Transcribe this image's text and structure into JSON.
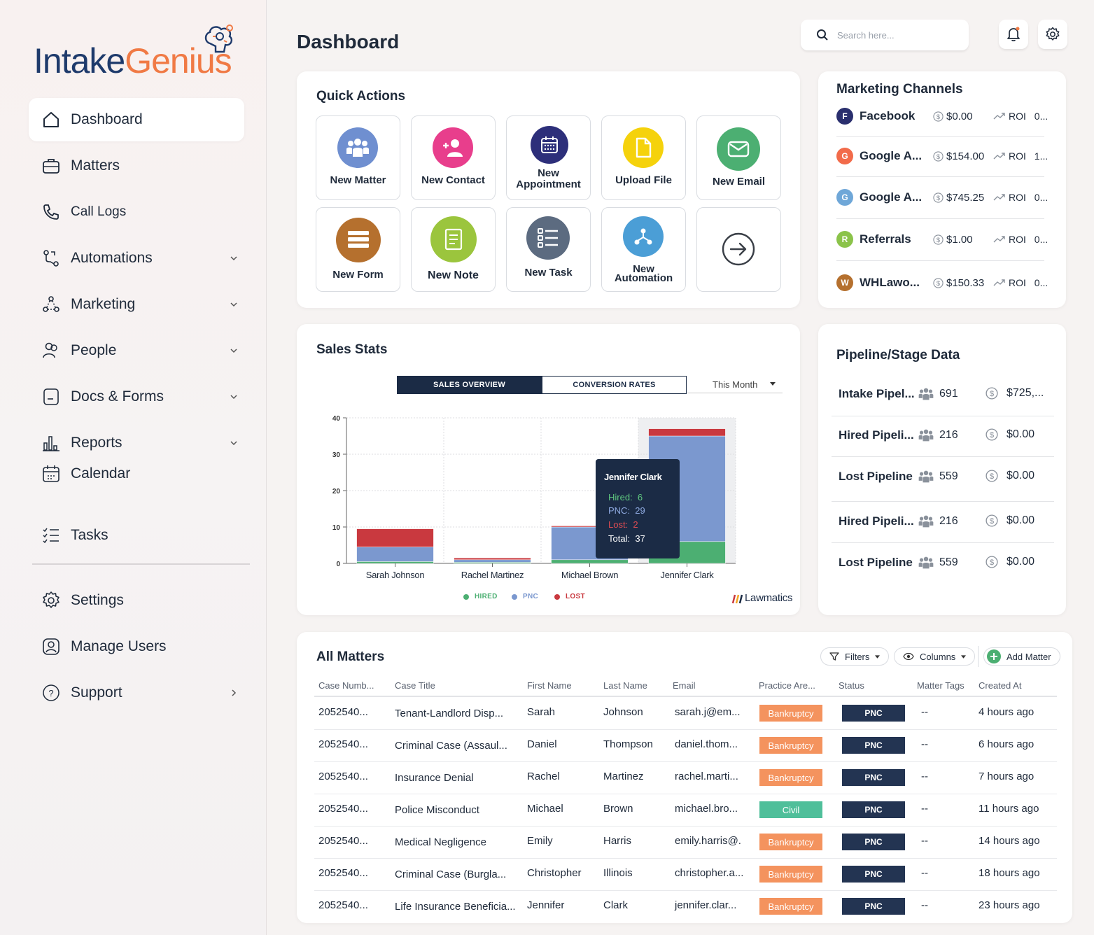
{
  "brand": {
    "part1": "Intake",
    "part2": "Genius"
  },
  "sidebar": {
    "items": [
      {
        "label": "Dashboard"
      },
      {
        "label": "Matters"
      },
      {
        "label": "Call Logs"
      },
      {
        "label": "Automations"
      },
      {
        "label": "Marketing"
      },
      {
        "label": "People"
      },
      {
        "label": "Docs & Forms"
      },
      {
        "label": "Reports"
      },
      {
        "label": "Calendar"
      },
      {
        "label": "Tasks"
      },
      {
        "label": "Settings"
      },
      {
        "label": "Manage Users"
      },
      {
        "label": "Support"
      }
    ]
  },
  "header": {
    "title": "Dashboard",
    "search_placeholder": "Search here..."
  },
  "quick_actions": {
    "title": "Quick Actions",
    "tiles": [
      {
        "label": "New Matter",
        "color": "#6f8fd0"
      },
      {
        "label": "New Contact",
        "color": "#e83e8c"
      },
      {
        "label_line1": "New",
        "label_line2": "Appointment",
        "color": "#2d2f7a"
      },
      {
        "label": "Upload File",
        "color": "#f5d20c"
      },
      {
        "label": "New Email",
        "color": "#4caf72"
      },
      {
        "label": "New Form",
        "color": "#b5702e"
      },
      {
        "label": "New Note",
        "color": "#9bc53d"
      },
      {
        "label": "New Task",
        "color": "#5c6b80"
      },
      {
        "label_line1": "New",
        "label_line2": "Automation",
        "color": "#4b9ed6"
      }
    ]
  },
  "marketing_channels": {
    "title": "Marketing Channels",
    "roi_label": "ROI",
    "rows": [
      {
        "initial": "F",
        "name": "Facebook",
        "amount": "$0.00",
        "roi": "0...",
        "color": "#2a2f6e"
      },
      {
        "initial": "G",
        "name": "Google A...",
        "amount": "$154.00",
        "roi": "1...",
        "color": "#f26b4a"
      },
      {
        "initial": "G",
        "name": "Google A...",
        "amount": "$745.25",
        "roi": "0...",
        "color": "#6fa7d8"
      },
      {
        "initial": "R",
        "name": "Referrals",
        "amount": "$1.00",
        "roi": "0...",
        "color": "#8bc34a"
      },
      {
        "initial": "W",
        "name": "WHLawo...",
        "amount": "$150.33",
        "roi": "0...",
        "color": "#b5702e"
      }
    ]
  },
  "pipeline": {
    "title": "Pipeline/Stage Data",
    "rows": [
      {
        "name": "Intake Pipel...",
        "count": "691",
        "amount": "$725,..."
      },
      {
        "name": "Hired Pipeli...",
        "count": "216",
        "amount": "$0.00"
      },
      {
        "name": "Lost Pipeline",
        "count": "559",
        "amount": "$0.00"
      },
      {
        "name": "Hired Pipeli...",
        "count": "216",
        "amount": "$0.00"
      },
      {
        "name": "Lost Pipeline",
        "count": "559",
        "amount": "$0.00"
      }
    ]
  },
  "sales_stats": {
    "title": "Sales Stats",
    "tabs": [
      "SALES OVERVIEW",
      "CONVERSION RATES"
    ],
    "period": "This Month",
    "tooltip": {
      "name": "Jennifer Clark",
      "hired_label": "Hired:",
      "hired": "6",
      "pnc_label": "PNC:",
      "pnc": "29",
      "lost_label": "Lost:",
      "lost": "2",
      "total_label": "Total:",
      "total": "37"
    },
    "brand": "Lawmatics"
  },
  "chart_data": {
    "type": "bar",
    "stacked": true,
    "categories": [
      "Sarah Johnson",
      "Rachel Martinez",
      "Michael Brown",
      "Jennifer Clark"
    ],
    "series": [
      {
        "name": "HIRED",
        "values": [
          0.5,
          0.3,
          1,
          6
        ],
        "color": "#4caf72"
      },
      {
        "name": "PNC",
        "values": [
          4,
          0.7,
          9,
          29
        ],
        "color": "#7b98cf"
      },
      {
        "name": "LOST",
        "values": [
          5,
          0.5,
          0.3,
          2
        ],
        "color": "#c9393f"
      }
    ],
    "ylim": [
      0,
      40
    ],
    "yticks": [
      0,
      10,
      20,
      30,
      40
    ],
    "grid": true,
    "legend": "bottom"
  },
  "matters": {
    "title": "All Matters",
    "filters_label": "Filters",
    "columns_label": "Columns",
    "add_label": "Add Matter",
    "headers": [
      "Case Numb...",
      "Case Title",
      "First Name",
      "Last Name",
      "Email",
      "Practice Are...",
      "Status",
      "Matter Tags",
      "Created At"
    ],
    "rows": [
      {
        "num": "2052540...",
        "title": "Tenant-Landlord Disp...",
        "first": "Sarah",
        "last": "Johnson",
        "email": "sarah.j@em...",
        "area": "Bankruptcy",
        "area_color": "#f4935e",
        "status": "PNC",
        "tags": "--",
        "created": "4 hours ago"
      },
      {
        "num": "2052540...",
        "title": "Criminal Case (Assaul...",
        "first": "Daniel",
        "last": "Thompson",
        "email": "daniel.thom...",
        "area": "Bankruptcy",
        "area_color": "#f4935e",
        "status": "PNC",
        "tags": "--",
        "created": "6 hours ago"
      },
      {
        "num": "2052540...",
        "title": "Insurance Denial",
        "first": "Rachel",
        "last": "Martinez",
        "email": "rachel.marti...",
        "area": "Bankruptcy",
        "area_color": "#f4935e",
        "status": "PNC",
        "tags": "--",
        "created": "7 hours ago"
      },
      {
        "num": "2052540...",
        "title": "Police Misconduct",
        "first": "Michael",
        "last": "Brown",
        "email": "michael.bro...",
        "area": "Civil",
        "area_color": "#4fbf9a",
        "status": "PNC",
        "tags": "--",
        "created": "11 hours ago"
      },
      {
        "num": "2052540...",
        "title": "Medical Negligence",
        "first": "Emily",
        "last": "Harris",
        "email": "emily.harris@.",
        "area": "Bankruptcy",
        "area_color": "#f4935e",
        "status": "PNC",
        "tags": "--",
        "created": "14 hours ago"
      },
      {
        "num": "2052540...",
        "title": "Criminal Case (Burgla...",
        "first": "Christopher",
        "last": "Illinois",
        "email": "christopher.a...",
        "area": "Bankruptcy",
        "area_color": "#f4935e",
        "status": "PNC",
        "tags": "--",
        "created": "18 hours ago"
      },
      {
        "num": "2052540...",
        "title": "Life Insurance Beneficia...",
        "first": "Jennifer",
        "last": "Clark",
        "email": "jennifer.clar...",
        "area": "Bankruptcy",
        "area_color": "#f4935e",
        "status": "PNC",
        "tags": "--",
        "created": "23 hours ago"
      }
    ]
  }
}
